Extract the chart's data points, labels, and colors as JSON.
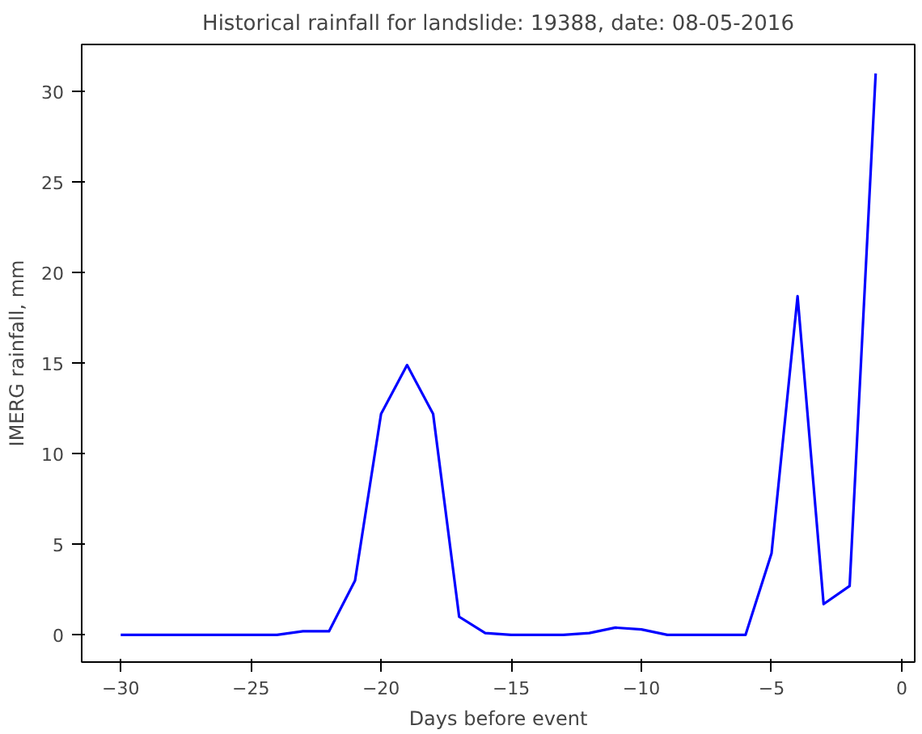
{
  "chart_data": {
    "type": "line",
    "title": "Historical rainfall for landslide: 19388, date: 08-05-2016",
    "xlabel": "Days before event",
    "ylabel": "IMERG rainfall, mm",
    "x": [
      -30,
      -29,
      -28,
      -27,
      -26,
      -25,
      -24,
      -23,
      -22,
      -21,
      -20,
      -19,
      -18,
      -17,
      -16,
      -15,
      -14,
      -13,
      -12,
      -11,
      -10,
      -9,
      -8,
      -7,
      -6,
      -5,
      -4,
      -3,
      -2,
      -1
    ],
    "series": [
      {
        "color": "#0000ff",
        "values": [
          0,
          0,
          0,
          0,
          0,
          0,
          0,
          0.2,
          0.2,
          3,
          12.2,
          14.9,
          12.2,
          1,
          0.1,
          0,
          0,
          0,
          0.1,
          0.4,
          0.3,
          0,
          0,
          0,
          0,
          4.5,
          18.7,
          1.7,
          2.7,
          31
        ]
      }
    ],
    "xlim": [
      -31.5,
      0.5
    ],
    "ylim": [
      -1.5,
      32.6
    ],
    "xticks": [
      -30,
      -25,
      -20,
      -15,
      -10,
      -5,
      0
    ],
    "yticks": [
      0,
      5,
      10,
      15,
      20,
      25,
      30
    ]
  }
}
